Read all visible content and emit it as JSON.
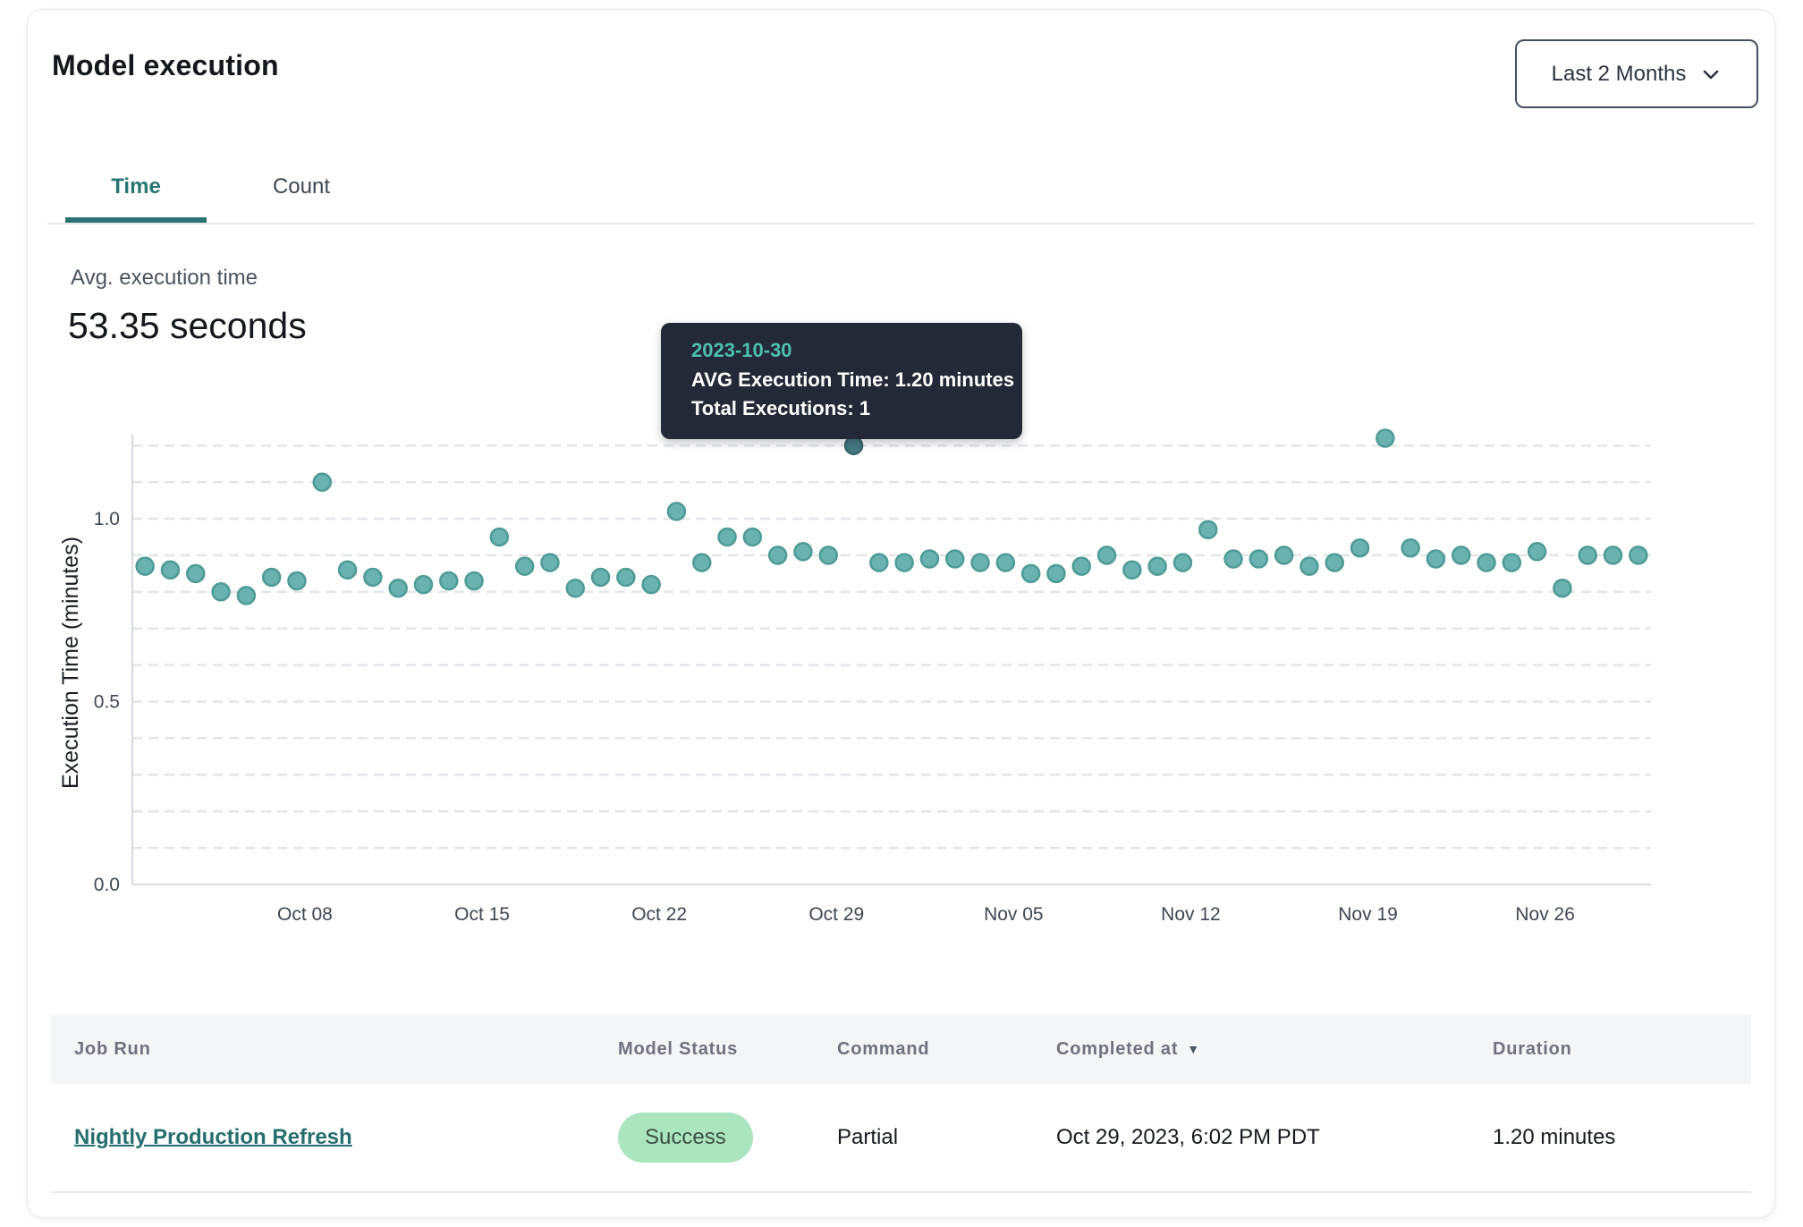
{
  "header": {
    "title": "Model execution",
    "range_selector": {
      "label": "Last 2 Months",
      "icon": "chevron-down-icon"
    }
  },
  "tabs": [
    {
      "label": "Time",
      "active": true
    },
    {
      "label": "Count",
      "active": false
    }
  ],
  "summary": {
    "label": "Avg. execution time",
    "value": "53.35 seconds"
  },
  "tooltip": {
    "date": "2023-10-30",
    "avg_line": "AVG Execution Time: 1.20 minutes",
    "total_line": "Total Executions: 1"
  },
  "chart_data": {
    "type": "scatter",
    "title": "",
    "xlabel": "",
    "ylabel": "Execution Time (minutes)",
    "ylim": [
      0,
      1.25
    ],
    "grid": "horizontal dashed every 0.1",
    "legend": "none",
    "y_ticks": [
      {
        "v": 0.0,
        "label": "0.0"
      },
      {
        "v": 0.5,
        "label": "0.5"
      },
      {
        "v": 1.0,
        "label": "1.0"
      }
    ],
    "x_ticks": [
      {
        "date": "2023-10-08",
        "label": "Oct 08"
      },
      {
        "date": "2023-10-15",
        "label": "Oct 15"
      },
      {
        "date": "2023-10-22",
        "label": "Oct 22"
      },
      {
        "date": "2023-10-29",
        "label": "Oct 29"
      },
      {
        "date": "2023-11-05",
        "label": "Nov 05"
      },
      {
        "date": "2023-11-12",
        "label": "Nov 12"
      },
      {
        "date": "2023-11-19",
        "label": "Nov 19"
      },
      {
        "date": "2023-11-26",
        "label": "Nov 26"
      }
    ],
    "highlight_date": "2023-10-30",
    "points": [
      {
        "d": "2023-10-02",
        "v": 0.87
      },
      {
        "d": "2023-10-03",
        "v": 0.86
      },
      {
        "d": "2023-10-04",
        "v": 0.85
      },
      {
        "d": "2023-10-05",
        "v": 0.8
      },
      {
        "d": "2023-10-06",
        "v": 0.79
      },
      {
        "d": "2023-10-07",
        "v": 0.84
      },
      {
        "d": "2023-10-08",
        "v": 0.83
      },
      {
        "d": "2023-10-09",
        "v": 1.1
      },
      {
        "d": "2023-10-10",
        "v": 0.86
      },
      {
        "d": "2023-10-11",
        "v": 0.84
      },
      {
        "d": "2023-10-12",
        "v": 0.81
      },
      {
        "d": "2023-10-13",
        "v": 0.82
      },
      {
        "d": "2023-10-14",
        "v": 0.83
      },
      {
        "d": "2023-10-15",
        "v": 0.83
      },
      {
        "d": "2023-10-16",
        "v": 0.95
      },
      {
        "d": "2023-10-17",
        "v": 0.87
      },
      {
        "d": "2023-10-18",
        "v": 0.88
      },
      {
        "d": "2023-10-19",
        "v": 0.81
      },
      {
        "d": "2023-10-20",
        "v": 0.84
      },
      {
        "d": "2023-10-21",
        "v": 0.84
      },
      {
        "d": "2023-10-22",
        "v": 0.82
      },
      {
        "d": "2023-10-23",
        "v": 1.02
      },
      {
        "d": "2023-10-24",
        "v": 0.88
      },
      {
        "d": "2023-10-25",
        "v": 0.95
      },
      {
        "d": "2023-10-26",
        "v": 0.95
      },
      {
        "d": "2023-10-27",
        "v": 0.9
      },
      {
        "d": "2023-10-28",
        "v": 0.91
      },
      {
        "d": "2023-10-29",
        "v": 0.9
      },
      {
        "d": "2023-10-30",
        "v": 1.2
      },
      {
        "d": "2023-10-31",
        "v": 0.88
      },
      {
        "d": "2023-11-01",
        "v": 0.88
      },
      {
        "d": "2023-11-02",
        "v": 0.89
      },
      {
        "d": "2023-11-03",
        "v": 0.89
      },
      {
        "d": "2023-11-04",
        "v": 0.88
      },
      {
        "d": "2023-11-05",
        "v": 0.88
      },
      {
        "d": "2023-11-06",
        "v": 0.85
      },
      {
        "d": "2023-11-07",
        "v": 0.85
      },
      {
        "d": "2023-11-08",
        "v": 0.87
      },
      {
        "d": "2023-11-09",
        "v": 0.9
      },
      {
        "d": "2023-11-10",
        "v": 0.86
      },
      {
        "d": "2023-11-11",
        "v": 0.87
      },
      {
        "d": "2023-11-12",
        "v": 0.88
      },
      {
        "d": "2023-11-13",
        "v": 0.97
      },
      {
        "d": "2023-11-14",
        "v": 0.89
      },
      {
        "d": "2023-11-15",
        "v": 0.89
      },
      {
        "d": "2023-11-16",
        "v": 0.9
      },
      {
        "d": "2023-11-17",
        "v": 0.87
      },
      {
        "d": "2023-11-18",
        "v": 0.88
      },
      {
        "d": "2023-11-19",
        "v": 0.92
      },
      {
        "d": "2023-11-20",
        "v": 1.22
      },
      {
        "d": "2023-11-21",
        "v": 0.92
      },
      {
        "d": "2023-11-22",
        "v": 0.89
      },
      {
        "d": "2023-11-23",
        "v": 0.9
      },
      {
        "d": "2023-11-24",
        "v": 0.88
      },
      {
        "d": "2023-11-25",
        "v": 0.88
      },
      {
        "d": "2023-11-26",
        "v": 0.91
      },
      {
        "d": "2023-11-27",
        "v": 0.81
      },
      {
        "d": "2023-11-28",
        "v": 0.9
      },
      {
        "d": "2023-11-29",
        "v": 0.9
      },
      {
        "d": "2023-11-30",
        "v": 0.9
      }
    ]
  },
  "table": {
    "columns": [
      "Job Run",
      "Model Status",
      "Command",
      "Completed at",
      "Duration"
    ],
    "sorted_column": "Completed at",
    "rows": [
      {
        "job_run": "Nightly Production Refresh",
        "model_status": "Success",
        "command": "Partial",
        "completed_at": "Oct 29, 2023, 6:02 PM PDT",
        "duration": "1.20 minutes"
      }
    ]
  },
  "colors": {
    "accent_teal": "#2A7475",
    "point_fill": "#6AB2AF",
    "point_stroke": "#4E9B97",
    "point_highlight_fill": "#457983",
    "point_highlight_stroke": "#39656D",
    "gridline": "#E3E5E9",
    "axis_line": "#D7DADF",
    "tooltip_bg": "#232937",
    "tooltip_accent": "#4FC0AC",
    "success_bg": "#ABE5BF",
    "success_text": "#3D4F43",
    "header_bg": "#F4F5F7"
  }
}
